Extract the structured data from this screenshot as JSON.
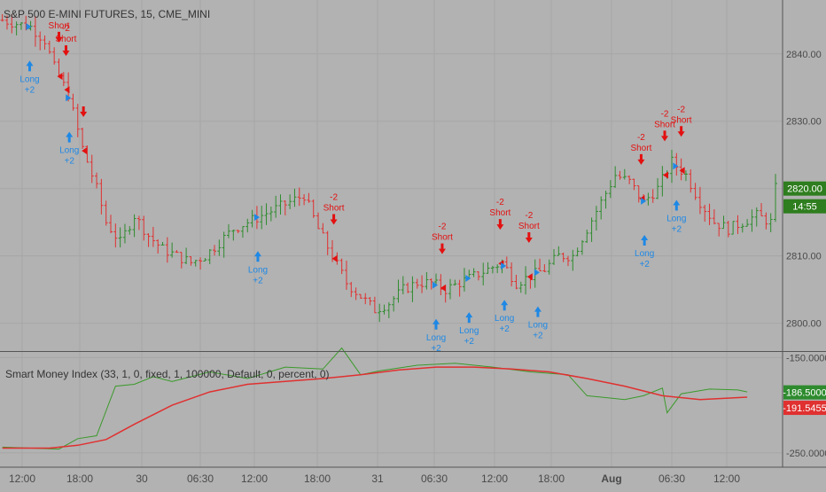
{
  "chart_data": {
    "type": "ohlc",
    "title": "S&P 500 E-MINI FUTURES, 15, CME_MINI",
    "colors": {
      "background": "#b2b2b2",
      "grid": "#a6a6a6",
      "up_bar": "#2e8b2e",
      "down_bar": "#e03030",
      "long_signal": "#1e88e5",
      "short_signal": "#e31010",
      "axis_text": "#4a4a4a",
      "price_badge": "#2e7d1e",
      "smi_line": "#3a9a2a",
      "signal_line": "#e03030"
    },
    "price_axis": {
      "ylim": [
        2796,
        2848
      ],
      "ticks": [
        2800,
        2810,
        2820,
        2830,
        2840
      ],
      "tick_labels": [
        "2800.00",
        "2810.00",
        "2820.00",
        "2830.00",
        "2840.00"
      ],
      "last_price": "2820.00",
      "countdown": "14:55"
    },
    "time_axis": {
      "labels": [
        "12:00",
        "18:00",
        "30",
        "06:30",
        "12:00",
        "18:00",
        "31",
        "06:30",
        "12:00",
        "18:00",
        "Aug",
        "06:30",
        "12:00"
      ],
      "bold": [
        false,
        false,
        false,
        false,
        false,
        false,
        false,
        false,
        false,
        false,
        true,
        false,
        false
      ]
    },
    "price_path": [
      [
        0,
        2845
      ],
      [
        6,
        2844
      ],
      [
        9,
        2842
      ],
      [
        11,
        2838
      ],
      [
        14,
        2834
      ],
      [
        17,
        2826
      ],
      [
        20,
        2820
      ],
      [
        22,
        2815
      ],
      [
        25,
        2812
      ],
      [
        28,
        2816
      ],
      [
        31,
        2813
      ],
      [
        34,
        2811
      ],
      [
        37,
        2810
      ],
      [
        40,
        2809
      ],
      [
        43,
        2810
      ],
      [
        46,
        2812
      ],
      [
        49,
        2814
      ],
      [
        52,
        2815
      ],
      [
        55,
        2816
      ],
      [
        58,
        2817
      ],
      [
        61,
        2818
      ],
      [
        64,
        2819
      ],
      [
        67,
        2814
      ],
      [
        70,
        2810
      ],
      [
        73,
        2806
      ],
      [
        76,
        2804
      ],
      [
        79,
        2802
      ],
      [
        82,
        2803
      ],
      [
        85,
        2805
      ],
      [
        88,
        2806
      ],
      [
        91,
        2806
      ],
      [
        94,
        2805
      ],
      [
        97,
        2806
      ],
      [
        100,
        2807
      ],
      [
        103,
        2808
      ],
      [
        106,
        2809
      ],
      [
        109,
        2806
      ],
      [
        112,
        2807
      ],
      [
        115,
        2808
      ],
      [
        118,
        2810
      ],
      [
        121,
        2810
      ],
      [
        124,
        2814
      ],
      [
        127,
        2818
      ],
      [
        130,
        2822
      ],
      [
        133,
        2821
      ],
      [
        136,
        2818
      ],
      [
        139,
        2820
      ],
      [
        142,
        2824
      ],
      [
        145,
        2822
      ],
      [
        148,
        2818
      ],
      [
        151,
        2815
      ],
      [
        154,
        2814
      ],
      [
        157,
        2815
      ],
      [
        160,
        2816
      ],
      [
        163,
        2815
      ],
      [
        164,
        2820
      ]
    ],
    "signals": [
      {
        "type": "short",
        "x": 12,
        "label": "Short",
        "value": ""
      },
      {
        "type": "short",
        "x": 13.5,
        "label": "Short",
        "value": "-2"
      },
      {
        "type": "short",
        "x": 17.2,
        "label": "",
        "value": ""
      },
      {
        "type": "long",
        "x": 5.8,
        "label": "Long",
        "value": "+2"
      },
      {
        "type": "long",
        "x": 14.2,
        "label": "Long",
        "value": "+2"
      },
      {
        "type": "long",
        "x": 54.2,
        "label": "Long",
        "value": "+2"
      },
      {
        "type": "short",
        "x": 70.3,
        "label": "Short",
        "value": "-2"
      },
      {
        "type": "short",
        "x": 93.3,
        "label": "Short",
        "value": "-2"
      },
      {
        "type": "long",
        "x": 92,
        "label": "Long",
        "value": "+2"
      },
      {
        "type": "long",
        "x": 99,
        "label": "Long",
        "value": "+2"
      },
      {
        "type": "short",
        "x": 105.6,
        "label": "Short",
        "value": "-2"
      },
      {
        "type": "long",
        "x": 106.5,
        "label": "Long",
        "value": "+2"
      },
      {
        "type": "short",
        "x": 111.7,
        "label": "Short",
        "value": "-2"
      },
      {
        "type": "long",
        "x": 113.6,
        "label": "Long",
        "value": "+2"
      },
      {
        "type": "short",
        "x": 135.5,
        "label": "Short",
        "value": "-2"
      },
      {
        "type": "long",
        "x": 136.2,
        "label": "Long",
        "value": "+2"
      },
      {
        "type": "short",
        "x": 140.5,
        "label": "Short",
        "value": "-2"
      },
      {
        "type": "short",
        "x": 144,
        "label": "Short",
        "value": "-2"
      },
      {
        "type": "long",
        "x": 143,
        "label": "Long",
        "value": "+2"
      }
    ],
    "indicator": {
      "title": "Smart Money Index (33, 1, 0, fixed, 1, 100000, Default, 0, percent, 0)",
      "ylim": [
        -265,
        -145
      ],
      "tick_labels": [
        "-150.0000",
        "-250.0000"
      ],
      "tick_values": [
        -150,
        -250
      ],
      "value_a": "-186.5000",
      "value_b": "-191.5455",
      "smi_path": [
        [
          0,
          -244
        ],
        [
          12,
          -246
        ],
        [
          16,
          -235
        ],
        [
          20,
          -232
        ],
        [
          24,
          -180
        ],
        [
          28,
          -178
        ],
        [
          32,
          -170
        ],
        [
          36,
          -175
        ],
        [
          44,
          -165
        ],
        [
          52,
          -172
        ],
        [
          60,
          -160
        ],
        [
          68,
          -162
        ],
        [
          72,
          -140
        ],
        [
          76,
          -168
        ],
        [
          80,
          -164
        ],
        [
          88,
          -158
        ],
        [
          96,
          -156
        ],
        [
          104,
          -160
        ],
        [
          112,
          -165
        ],
        [
          120,
          -168
        ],
        [
          124,
          -190
        ],
        [
          128,
          -192
        ],
        [
          132,
          -194
        ],
        [
          136,
          -190
        ],
        [
          140,
          -182
        ],
        [
          141,
          -208
        ],
        [
          144,
          -188
        ],
        [
          150,
          -183
        ],
        [
          156,
          -184
        ],
        [
          158,
          -186
        ]
      ],
      "signal_path": [
        [
          0,
          -245
        ],
        [
          10,
          -245
        ],
        [
          16,
          -242
        ],
        [
          22,
          -236
        ],
        [
          28,
          -220
        ],
        [
          36,
          -200
        ],
        [
          44,
          -186
        ],
        [
          52,
          -178
        ],
        [
          60,
          -175
        ],
        [
          68,
          -172
        ],
        [
          76,
          -168
        ],
        [
          84,
          -163
        ],
        [
          92,
          -160
        ],
        [
          100,
          -160
        ],
        [
          108,
          -162
        ],
        [
          116,
          -165
        ],
        [
          124,
          -172
        ],
        [
          132,
          -180
        ],
        [
          140,
          -190
        ],
        [
          148,
          -194
        ],
        [
          158,
          -191.5
        ]
      ]
    }
  }
}
